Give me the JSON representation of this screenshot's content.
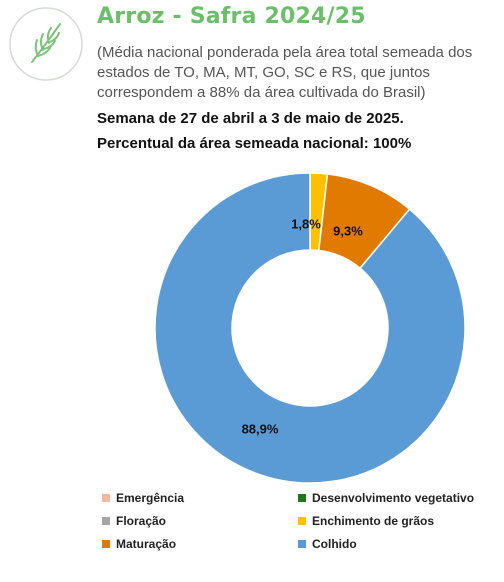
{
  "header": {
    "title": "Arroz - Safra 2024/25",
    "subtitle": "(Média nacional ponderada pela área total semeada dos estados de TO, MA, MT, GO, SC e RS, que juntos correspondem a 88% da área cultivada do Brasil)",
    "week": "Semana de 27 de abril a 3 de maio de 2025.",
    "area": "Percentual da área semeada nacional: 100%"
  },
  "logo": {
    "icon": "rice-plant-icon",
    "color": "#6cbf6a"
  },
  "chart_data": {
    "type": "pie",
    "variant": "donut",
    "series": [
      {
        "name": "Emergência",
        "value": 0,
        "color": "#f4b6a0",
        "label": ""
      },
      {
        "name": "Desenvolvimento vegetativo",
        "value": 0,
        "color": "#1a7a1a",
        "label": ""
      },
      {
        "name": "Floração",
        "value": 0,
        "color": "#a5a5a5",
        "label": ""
      },
      {
        "name": "Enchimento de grãos",
        "value": 1.8,
        "color": "#ffc000",
        "label": "1,8%"
      },
      {
        "name": "Maturação",
        "value": 9.3,
        "color": "#e07a00",
        "label": "9,3%"
      },
      {
        "name": "Colhido",
        "value": 88.9,
        "color": "#5b9bd5",
        "label": "88,9%"
      }
    ],
    "legend_position": "bottom"
  }
}
